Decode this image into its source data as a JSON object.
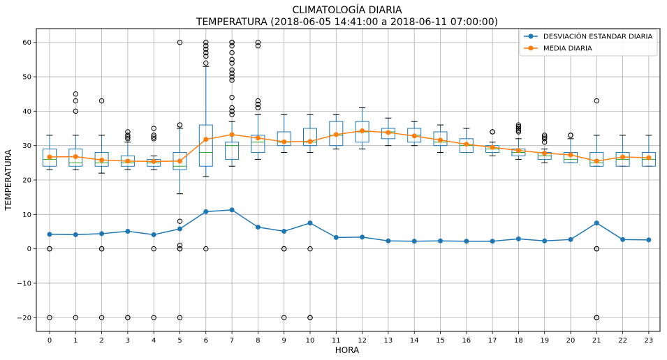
{
  "colors": {
    "std": "#1f77b4",
    "mean": "#ff7f0e",
    "box": "#1f77b4",
    "median": "#2ca02c",
    "grid": "#b0b0b0",
    "outlier": "#000000"
  },
  "chart_data": {
    "type": "line",
    "title": "CLIMATOLOGÍA DIARIA",
    "subtitle": "TEMPERATURA (2018-06-05 14:41:00 a 2018-06-11 07:00:00)",
    "xlabel": "HORA",
    "ylabel": "TEMPERATURA",
    "x": [
      0,
      1,
      2,
      3,
      4,
      5,
      6,
      7,
      8,
      9,
      10,
      11,
      12,
      13,
      14,
      15,
      16,
      17,
      18,
      19,
      20,
      21,
      22,
      23
    ],
    "x_tick_labels": [
      "0",
      "1",
      "2",
      "3",
      "4",
      "5",
      "6",
      "7",
      "8",
      "9",
      "10",
      "11",
      "12",
      "13",
      "14",
      "15",
      "16",
      "17",
      "18",
      "19",
      "20",
      "21",
      "22",
      "23"
    ],
    "ylim": [
      -24,
      64
    ],
    "y_ticks": [
      -20,
      -10,
      0,
      10,
      20,
      30,
      40,
      50,
      60
    ],
    "y_tick_labels": [
      "−20",
      "−10",
      "0",
      "10",
      "20",
      "30",
      "40",
      "50",
      "60"
    ],
    "grid": true,
    "legend_position": "top-right",
    "series": [
      {
        "name": "DESVIACIÓN ESTANDAR DIARIA",
        "values": [
          4.2,
          4.1,
          4.4,
          5.1,
          4.1,
          5.8,
          10.8,
          11.3,
          6.3,
          5.1,
          7.5,
          3.3,
          3.4,
          2.3,
          2.2,
          2.3,
          2.2,
          2.2,
          2.9,
          2.3,
          2.7,
          7.5,
          2.7,
          2.6
        ]
      },
      {
        "name": "MEDIA DIARIA",
        "values": [
          26.7,
          26.8,
          25.8,
          25.5,
          25.4,
          25.5,
          31.8,
          33.2,
          32.2,
          31.1,
          31.2,
          33.2,
          34.3,
          33.8,
          32.8,
          31.6,
          30.4,
          29.5,
          28.6,
          27.8,
          27.3,
          25.5,
          26.7,
          26.5
        ]
      }
    ],
    "boxes": [
      {
        "hour": 0,
        "whisker_low": 23,
        "q1": 24,
        "median": 26,
        "q3": 29,
        "whisker_high": 33,
        "outliers": [
          0,
          0,
          -20
        ]
      },
      {
        "hour": 1,
        "whisker_low": 23,
        "q1": 24,
        "median": 25,
        "q3": 29,
        "whisker_high": 33,
        "outliers": [
          40,
          43,
          45,
          -20
        ]
      },
      {
        "hour": 2,
        "whisker_low": 22,
        "q1": 24,
        "median": 25,
        "q3": 28,
        "whisker_high": 33,
        "outliers": [
          43,
          0,
          0,
          -20
        ]
      },
      {
        "hour": 3,
        "whisker_low": 23,
        "q1": 24,
        "median": 25,
        "q3": 27,
        "whisker_high": 31,
        "outliers": [
          32,
          32.5,
          33,
          34,
          -20,
          -20
        ]
      },
      {
        "hour": 4,
        "whisker_low": 23,
        "q1": 24,
        "median": 25,
        "q3": 26,
        "whisker_high": 27,
        "outliers": [
          32,
          32.5,
          33,
          35,
          0,
          -20
        ]
      },
      {
        "hour": 5,
        "whisker_low": 16,
        "q1": 23,
        "median": 24,
        "q3": 28,
        "whisker_high": 35,
        "outliers": [
          36,
          36,
          60,
          8,
          1,
          0,
          0,
          -20
        ]
      },
      {
        "hour": 6,
        "whisker_low": 21,
        "q1": 24,
        "median": 28,
        "q3": 36,
        "whisker_high": 53,
        "outliers": [
          54,
          56,
          57,
          58,
          59,
          60,
          0
        ]
      },
      {
        "hour": 7,
        "whisker_low": 24,
        "q1": 26,
        "median": 30,
        "q3": 31,
        "whisker_high": 37,
        "outliers": [
          39,
          40,
          41,
          44,
          49,
          50,
          51,
          52,
          54,
          55,
          57,
          59,
          60,
          60
        ]
      },
      {
        "hour": 8,
        "whisker_low": 26,
        "q1": 28,
        "median": 31,
        "q3": 33,
        "whisker_high": 39,
        "outliers": [
          41,
          41,
          42,
          43,
          59,
          60
        ]
      },
      {
        "hour": 9,
        "whisker_low": 28,
        "q1": 30,
        "median": 31,
        "q3": 34,
        "whisker_high": 39,
        "outliers": [
          0,
          0,
          -20
        ]
      },
      {
        "hour": 10,
        "whisker_low": 28,
        "q1": 30,
        "median": 31,
        "q3": 35,
        "whisker_high": 39,
        "outliers": [
          0,
          -20,
          -20
        ]
      },
      {
        "hour": 11,
        "whisker_low": 29,
        "q1": 30,
        "median": 33,
        "q3": 37,
        "whisker_high": 39,
        "outliers": []
      },
      {
        "hour": 12,
        "whisker_low": 29,
        "q1": 31,
        "median": 34,
        "q3": 37,
        "whisker_high": 41,
        "outliers": []
      },
      {
        "hour": 13,
        "whisker_low": 30,
        "q1": 32,
        "median": 34,
        "q3": 35,
        "whisker_high": 38,
        "outliers": []
      },
      {
        "hour": 14,
        "whisker_low": 30,
        "q1": 31,
        "median": 33,
        "q3": 35,
        "whisker_high": 37,
        "outliers": []
      },
      {
        "hour": 15,
        "whisker_low": 28,
        "q1": 30,
        "median": 31,
        "q3": 34,
        "whisker_high": 36,
        "outliers": []
      },
      {
        "hour": 16,
        "whisker_low": 28,
        "q1": 28,
        "median": 30,
        "q3": 32,
        "whisker_high": 35,
        "outliers": []
      },
      {
        "hour": 17,
        "whisker_low": 27,
        "q1": 28,
        "median": 29,
        "q3": 30,
        "whisker_high": 31,
        "outliers": [
          34,
          34
        ]
      },
      {
        "hour": 18,
        "whisker_low": 26,
        "q1": 27,
        "median": 28,
        "q3": 29,
        "whisker_high": 32,
        "outliers": [
          34,
          34.5,
          35,
          35.5,
          36
        ]
      },
      {
        "hour": 19,
        "whisker_low": 25,
        "q1": 26,
        "median": 27,
        "q3": 28,
        "whisker_high": 29,
        "outliers": [
          31,
          32,
          32.5,
          33
        ]
      },
      {
        "hour": 20,
        "whisker_low": 25,
        "q1": 25,
        "median": 26,
        "q3": 28,
        "whisker_high": 32,
        "outliers": [
          33,
          33
        ]
      },
      {
        "hour": 21,
        "whisker_low": 24,
        "q1": 24,
        "median": 25,
        "q3": 28,
        "whisker_high": 33,
        "outliers": [
          43,
          0,
          0,
          -20,
          -20
        ]
      },
      {
        "hour": 22,
        "whisker_low": 24,
        "q1": 24,
        "median": 26,
        "q3": 28,
        "whisker_high": 33,
        "outliers": []
      },
      {
        "hour": 23,
        "whisker_low": 24,
        "q1": 24,
        "median": 26,
        "q3": 28,
        "whisker_high": 33,
        "outliers": []
      }
    ]
  }
}
